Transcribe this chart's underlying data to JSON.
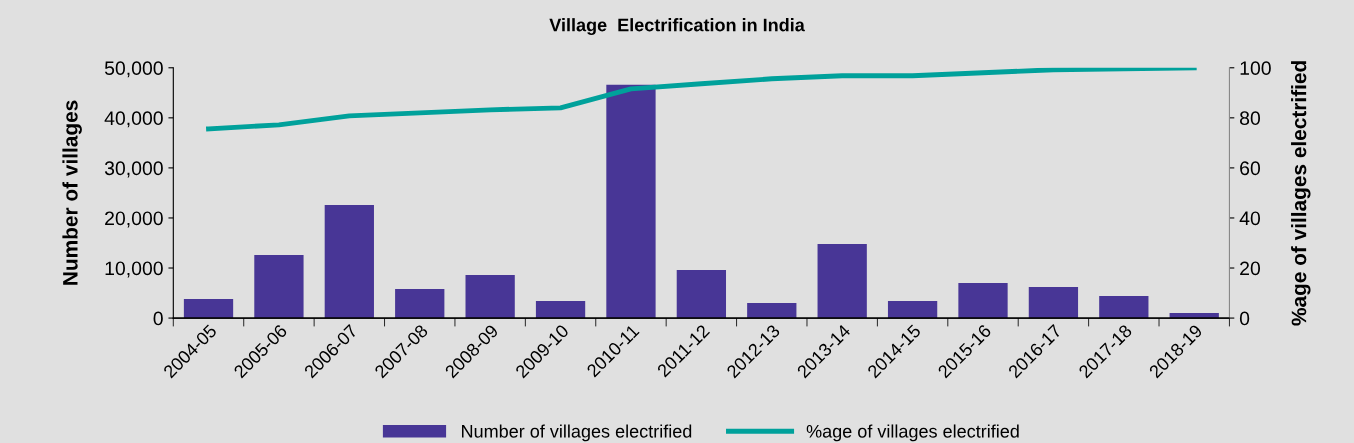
{
  "chart_data": {
    "type": "bar",
    "title": "Village  Electrification in India",
    "categories": [
      "2004-05",
      "2005-06",
      "2006-07",
      "2007-08",
      "2008-09",
      "2009-10",
      "2010-11",
      "2011-12",
      "2012-13",
      "2013-14",
      "2014-15",
      "2015-16",
      "2016-17",
      "2017-18",
      "2018-19"
    ],
    "series": [
      {
        "name": "Number of villages electrified",
        "color": "#483696",
        "values": [
          3800,
          12600,
          22600,
          5800,
          8600,
          3400,
          46600,
          9600,
          3000,
          14800,
          3400,
          7000,
          6200,
          4400,
          1000
        ]
      },
      {
        "name": "%age of villages electrified",
        "type": "line",
        "axis": "y2",
        "color": "#00a19b",
        "values": [
          75.6,
          77.2,
          80.8,
          82,
          83.2,
          84,
          91.6,
          93.6,
          95.6,
          96.8,
          96.8,
          98,
          99.2,
          99.6,
          100
        ]
      }
    ],
    "ylabel": "Number of villages",
    "y2label": "%age of villages electrified",
    "ylim": [
      0,
      50000
    ],
    "yticks": [
      {
        "value": 0,
        "label": "0"
      },
      {
        "value": 10000,
        "label": "10,000"
      },
      {
        "value": 20000,
        "label": "20,000"
      },
      {
        "value": 30000,
        "label": "30,000"
      },
      {
        "value": 40000,
        "label": "40,000"
      },
      {
        "value": 50000,
        "label": "50,000"
      }
    ],
    "y2lim": [
      0,
      100
    ],
    "y2ticks": [
      0,
      20,
      40,
      60,
      80,
      100
    ],
    "grid": false,
    "legend": "bottom",
    "marker": "none",
    "line_style": "solid"
  }
}
